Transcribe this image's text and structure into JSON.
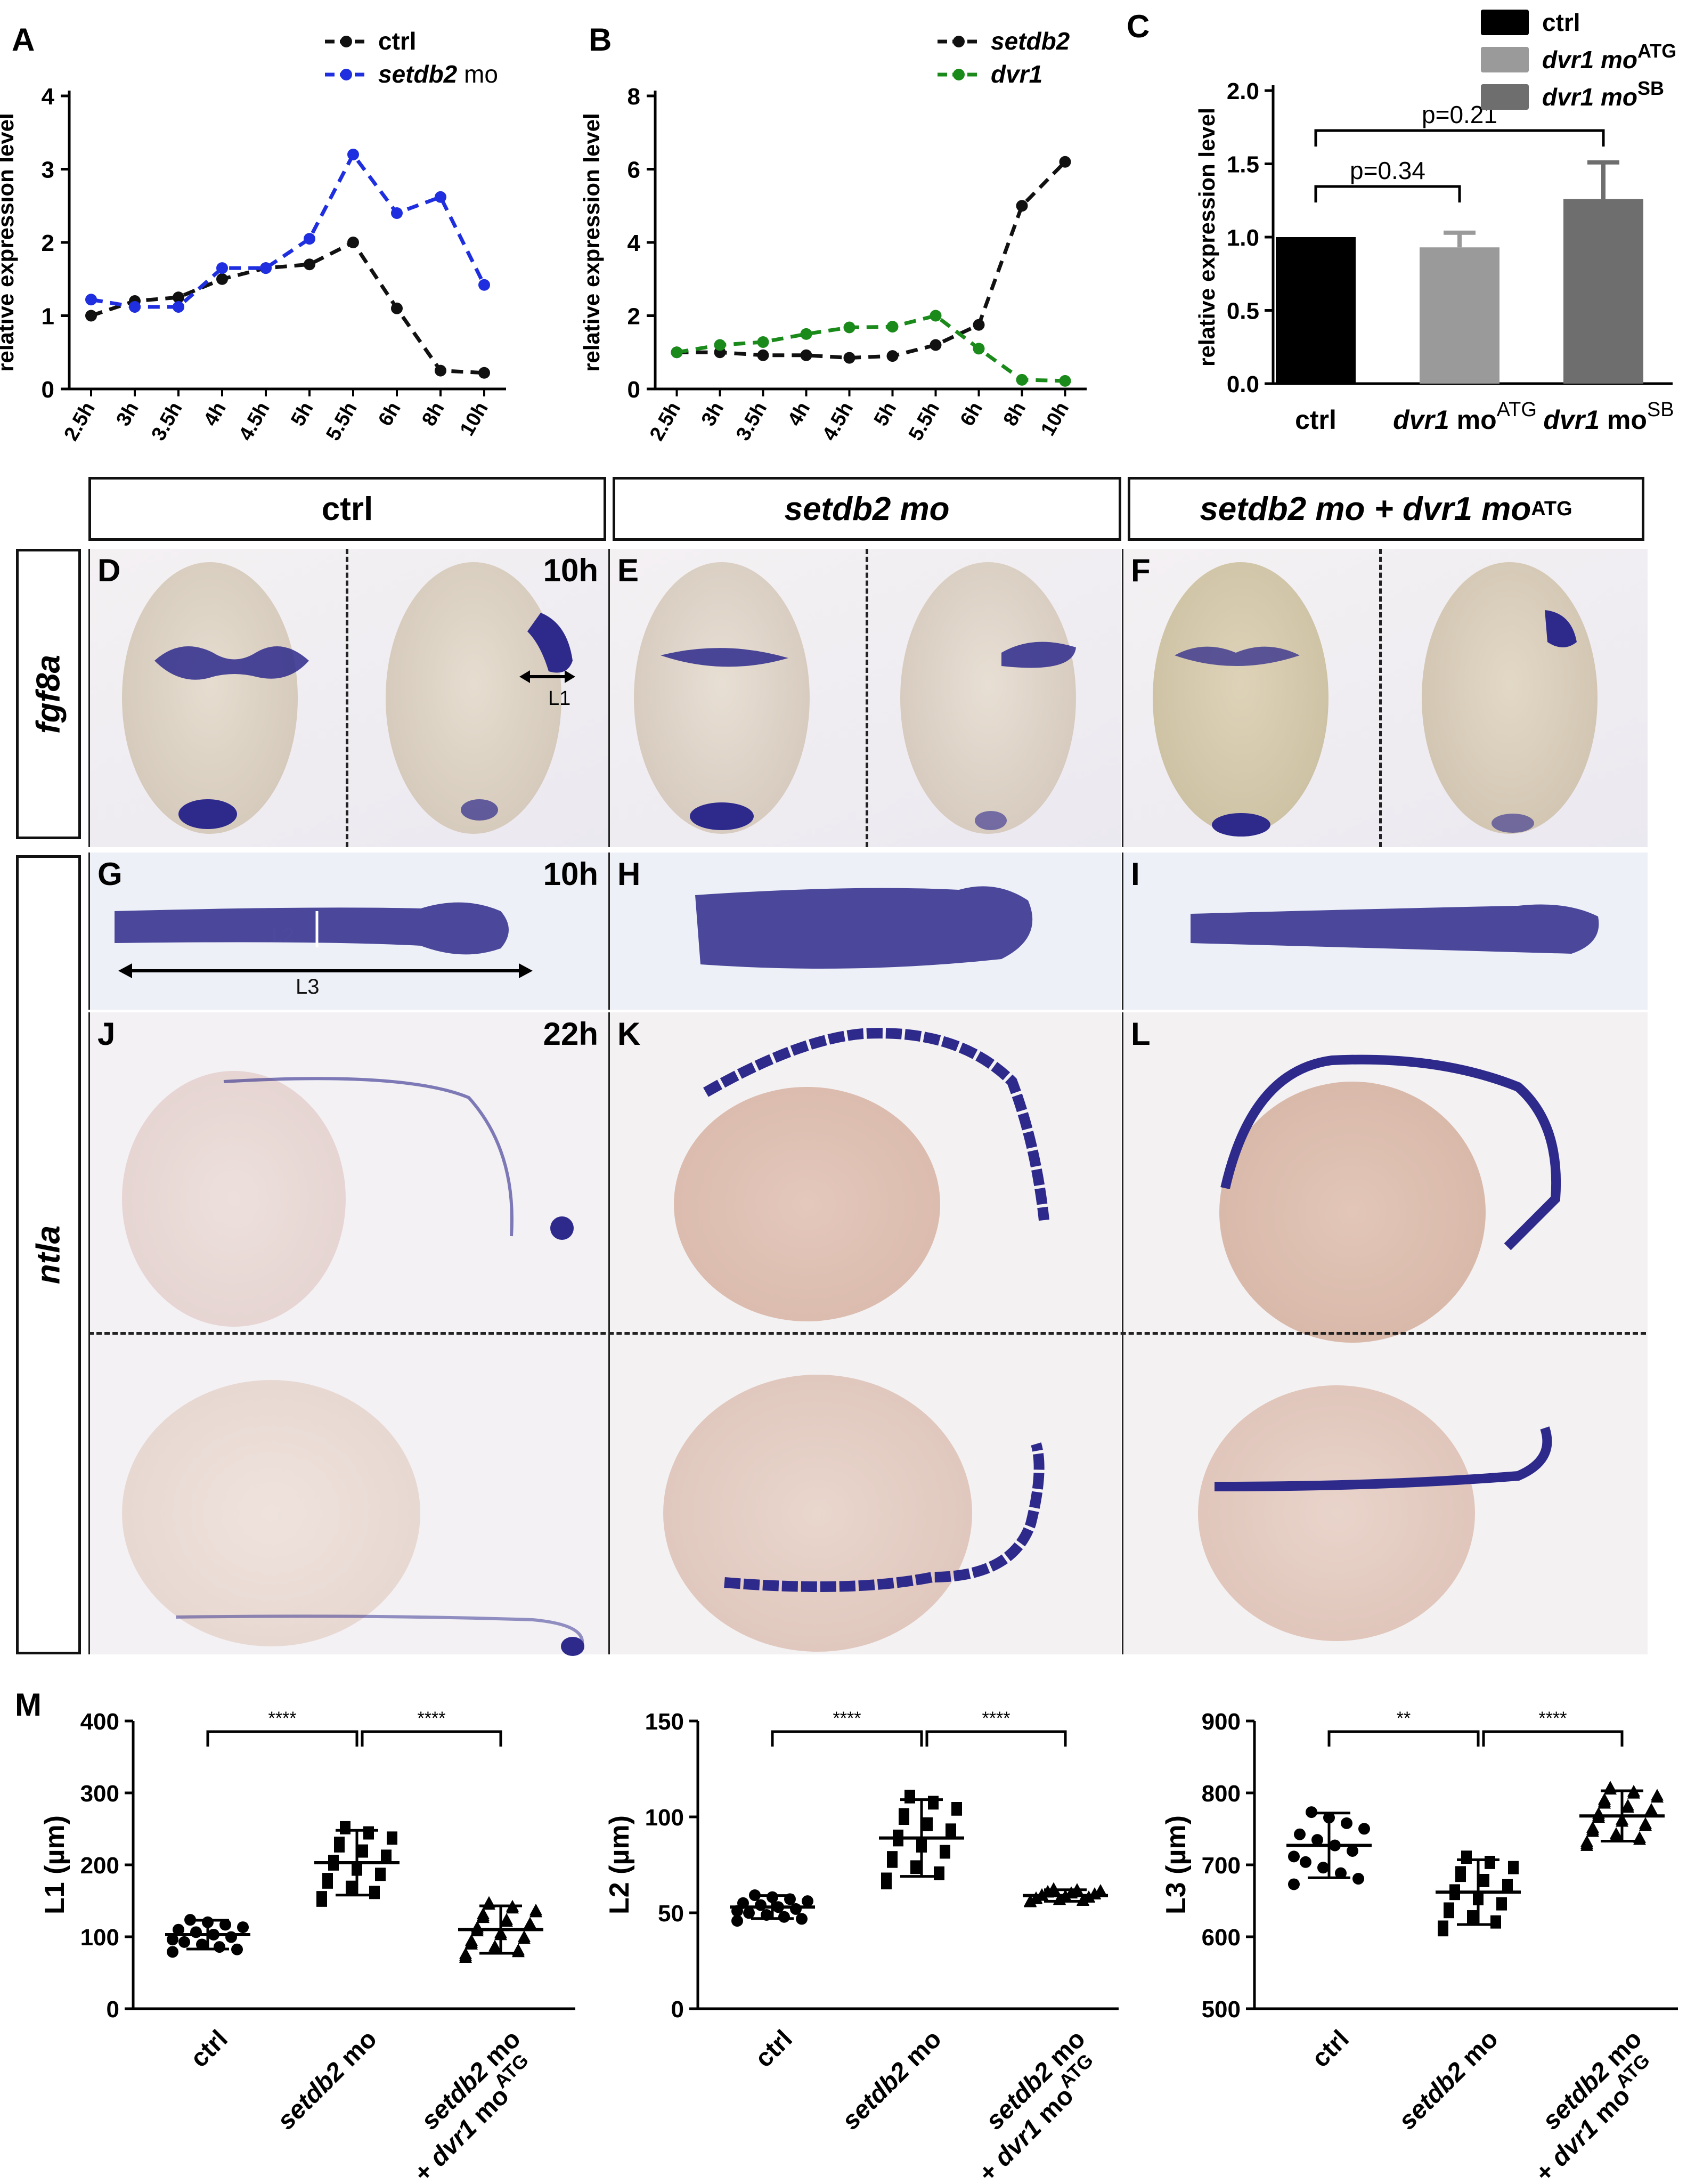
{
  "panel_labels": {
    "A": "A",
    "B": "B",
    "C": "C",
    "D": "D",
    "E": "E",
    "F": "F",
    "G": "G",
    "H": "H",
    "I": "I",
    "J": "J",
    "K": "K",
    "L": "L",
    "M": "M"
  },
  "column_headers": [
    "ctrl",
    "setdb2 mo",
    "setdb2 mo + dvr1 mo"
  ],
  "column_header_sup": "ATG",
  "row_labels": {
    "fgf8a": "fgf8a",
    "ntla": "ntla"
  },
  "time_labels": {
    "d": "10h",
    "g": "10h",
    "j": "22h"
  },
  "measure_labels": {
    "l1": "L1",
    "l2": "L2",
    "l3": "L3"
  },
  "colors": {
    "ctrl": "#111111",
    "setdb2_mo": "#1f2fe0",
    "dvr1": "#1a8a1a",
    "stain": "#2e2a8c",
    "bar_ctrl": "#000000",
    "bar_atg": "#9a9a9a",
    "bar_sb": "#6e6e6e"
  },
  "chart_data": [
    {
      "id": "A",
      "type": "line",
      "x": [
        "2.5h",
        "3h",
        "3.5h",
        "4h",
        "4.5h",
        "5h",
        "5.5h",
        "6h",
        "8h",
        "10h"
      ],
      "ylabel": "relative expression level",
      "ylim": [
        0,
        4
      ],
      "yticks": [
        "0",
        "1",
        "2",
        "3",
        "4"
      ],
      "legend_position": "top-right",
      "series": [
        {
          "name": "ctrl",
          "values": [
            1.0,
            1.2,
            1.25,
            1.5,
            1.65,
            1.7,
            2.0,
            1.1,
            0.25,
            0.22
          ]
        },
        {
          "name": "setdb2 mo",
          "values": [
            1.22,
            1.12,
            1.12,
            1.65,
            1.65,
            2.05,
            3.2,
            2.4,
            2.62,
            1.42
          ]
        }
      ]
    },
    {
      "id": "B",
      "type": "line",
      "x": [
        "2.5h",
        "3h",
        "3.5h",
        "4h",
        "4.5h",
        "5h",
        "5.5h",
        "6h",
        "8h",
        "10h"
      ],
      "ylabel": "relative expression level",
      "ylim": [
        0,
        8
      ],
      "yticks": [
        "0",
        "2",
        "4",
        "6",
        "8"
      ],
      "legend_position": "top-right",
      "series": [
        {
          "name": "setdb2",
          "values": [
            1.0,
            1.0,
            0.92,
            0.92,
            0.85,
            0.9,
            1.2,
            1.75,
            5.0,
            6.2
          ]
        },
        {
          "name": "dvr1",
          "values": [
            1.0,
            1.2,
            1.28,
            1.5,
            1.68,
            1.7,
            2.0,
            1.1,
            0.25,
            0.22
          ]
        }
      ]
    },
    {
      "id": "C",
      "type": "bar",
      "categories": [
        "ctrl",
        "dvr1 mo",
        "dvr1 mo"
      ],
      "category_sup": [
        "",
        "ATG",
        "SB"
      ],
      "legend": [
        "ctrl",
        "dvr1 mo",
        "dvr1 mo"
      ],
      "legend_sup": [
        "",
        "ATG",
        "SB"
      ],
      "values": [
        1.0,
        0.93,
        1.26
      ],
      "errors": [
        0,
        0.1,
        0.25
      ],
      "ylabel": "relative expression level",
      "ylim": [
        0,
        2.0
      ],
      "yticks": [
        "0.0",
        "0.5",
        "1.0",
        "1.5",
        "2.0"
      ],
      "annotations": [
        "p=0.34",
        "p=0.21"
      ]
    },
    {
      "id": "M1",
      "type": "scatter",
      "ylabel": "L1 (µm)",
      "ylim": [
        0,
        400
      ],
      "yticks": [
        "0",
        "100",
        "200",
        "300",
        "400"
      ],
      "categories": [
        "ctrl",
        "setdb2 mo",
        "setdb2 mo + dvr1 mo"
      ],
      "means": [
        103,
        203,
        110
      ],
      "sd": [
        20,
        45,
        33
      ],
      "significance": [
        "****",
        "****"
      ]
    },
    {
      "id": "M2",
      "type": "scatter",
      "ylabel": "L2 (µm)",
      "ylim": [
        0,
        150
      ],
      "yticks": [
        "0",
        "50",
        "100",
        "150"
      ],
      "categories": [
        "ctrl",
        "setdb2 mo",
        "setdb2 mo + dvr1 mo"
      ],
      "means": [
        53,
        89,
        59
      ],
      "sd": [
        6,
        20,
        3
      ],
      "significance": [
        "****",
        "****"
      ]
    },
    {
      "id": "M3",
      "type": "scatter",
      "ylabel": "L3 (µm)",
      "ylim": [
        500,
        900
      ],
      "yticks": [
        "500",
        "600",
        "700",
        "800",
        "900"
      ],
      "categories": [
        "ctrl",
        "setdb2 mo",
        "setdb2 mo + dvr1 mo"
      ],
      "means": [
        727,
        662,
        768
      ],
      "sd": [
        45,
        45,
        35
      ],
      "significance": [
        "**",
        "****"
      ]
    }
  ]
}
